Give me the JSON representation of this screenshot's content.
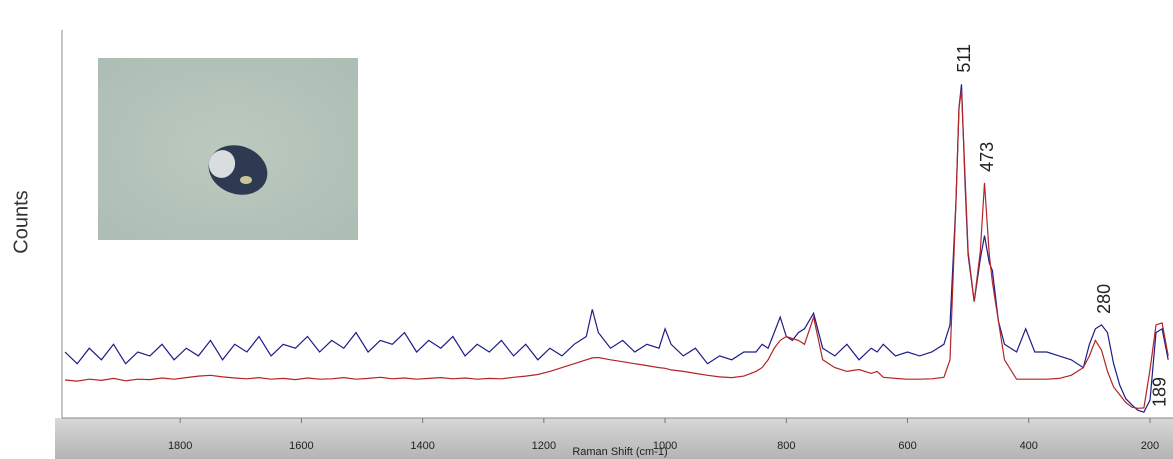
{
  "chart_data": {
    "type": "line",
    "x_label": "Raman Shift (cm-1)",
    "y_label": "Counts",
    "xlim": [
      1995,
      162
    ],
    "ylim": [
      0,
      100
    ],
    "xticks": [
      1800,
      1600,
      1400,
      1200,
      1000,
      800,
      600,
      400,
      200
    ],
    "peak_labels": [
      511,
      473,
      280,
      189
    ],
    "x": [
      1990,
      1970,
      1950,
      1930,
      1910,
      1890,
      1870,
      1850,
      1830,
      1810,
      1790,
      1770,
      1750,
      1730,
      1710,
      1690,
      1670,
      1650,
      1630,
      1610,
      1590,
      1570,
      1550,
      1530,
      1510,
      1490,
      1470,
      1450,
      1430,
      1410,
      1390,
      1370,
      1350,
      1330,
      1310,
      1290,
      1270,
      1250,
      1230,
      1210,
      1190,
      1170,
      1150,
      1130,
      1120,
      1110,
      1090,
      1070,
      1050,
      1030,
      1010,
      1000,
      990,
      970,
      950,
      930,
      910,
      890,
      870,
      850,
      840,
      830,
      820,
      810,
      800,
      790,
      780,
      770,
      755,
      740,
      720,
      700,
      680,
      660,
      650,
      640,
      620,
      600,
      580,
      560,
      540,
      530,
      520,
      515,
      511,
      505,
      500,
      490,
      480,
      473,
      465,
      460,
      450,
      440,
      420,
      405,
      390,
      370,
      350,
      330,
      310,
      300,
      290,
      280,
      270,
      260,
      250,
      240,
      230,
      220,
      210,
      200,
      190,
      180,
      170
    ],
    "series": [
      {
        "color": "#1c1c8a",
        "values": [
          17,
          14,
          18,
          15,
          19,
          14,
          17,
          16,
          19,
          15,
          18,
          16,
          20,
          15,
          19,
          17,
          21,
          16,
          19,
          18,
          21,
          17,
          20,
          18,
          22,
          17,
          20,
          19,
          22,
          17,
          20,
          18,
          21,
          16,
          19,
          17,
          20,
          16,
          19,
          15,
          18,
          16,
          19,
          21,
          28,
          22,
          18,
          20,
          17,
          19,
          18,
          23,
          19,
          16,
          18,
          14,
          16,
          15,
          17,
          17,
          19,
          18,
          22,
          26,
          21,
          20,
          22,
          23,
          27,
          18,
          16,
          19,
          15,
          18,
          17,
          19,
          16,
          17,
          16,
          17,
          19,
          24,
          56,
          80,
          86,
          60,
          42,
          30,
          41,
          47,
          40,
          38,
          25,
          19,
          17,
          23,
          17,
          17,
          16,
          15,
          13,
          19,
          23,
          24,
          22,
          14,
          8.5,
          5,
          3.4,
          2,
          1.5,
          4.6,
          22,
          23,
          15
        ]
      },
      {
        "color": "#b32424",
        "values": [
          9.8,
          9.5,
          10,
          9.7,
          10.2,
          9.6,
          10,
          9.9,
          10.3,
          10,
          10.4,
          10.8,
          11,
          10.6,
          10.3,
          10.1,
          10.4,
          10,
          10.2,
          9.9,
          10.3,
          10,
          10.1,
          10.4,
          10,
          10.2,
          10.5,
          10.1,
          10.3,
          10,
          10.2,
          10.4,
          10.1,
          10.3,
          10,
          10.2,
          10.1,
          10.5,
          10.8,
          11.2,
          12,
          13,
          14,
          15,
          15.5,
          15.6,
          15,
          14.5,
          14,
          13.5,
          13,
          12.8,
          12.4,
          12,
          11.5,
          11,
          10.6,
          10.4,
          10.8,
          12,
          13,
          15,
          18,
          20,
          21,
          20.5,
          20,
          19,
          26,
          15,
          13,
          12,
          12.5,
          11.5,
          12,
          10.5,
          10.2,
          10,
          10,
          10.1,
          10.5,
          15,
          56,
          80,
          84.5,
          62,
          43,
          30,
          43,
          60.6,
          42,
          35,
          25,
          15,
          10,
          10,
          10,
          10,
          10.2,
          11,
          13,
          16,
          20,
          17.5,
          12,
          8,
          6,
          4,
          2.8,
          2.5,
          2.6,
          12.4,
          24,
          24.5,
          16
        ]
      }
    ]
  }
}
